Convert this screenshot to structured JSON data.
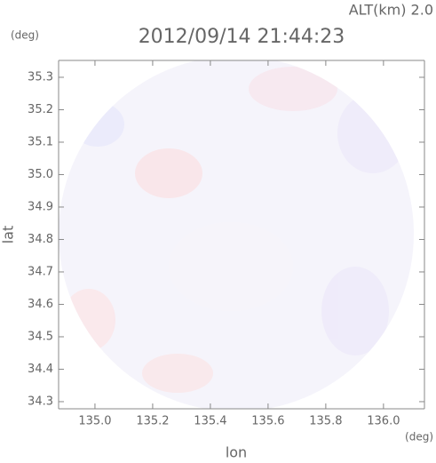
{
  "chart_data": {
    "type": "radar-map",
    "title": "2012/09/14 21:44:23",
    "altitude_label": "ALT(km) 2.0",
    "y_unit": "(deg)",
    "x_unit": "(deg)",
    "xlabel": "lon",
    "ylabel": "lat",
    "xlim": [
      134.874,
      136.142
    ],
    "ylim": [
      34.278,
      35.352
    ],
    "xticks": [
      {
        "value": 135,
        "label": "135.0"
      },
      135.2,
      135.4,
      135.6,
      135.8,
      {
        "value": 136,
        "label": "136.0"
      }
    ],
    "yticks": [
      {
        "value": 34.3,
        "label": "34.3"
      },
      34.4,
      34.5,
      34.6,
      34.7,
      34.8,
      34.9,
      {
        "value": 35,
        "label": "35.0"
      },
      35.1,
      35.2,
      35.3
    ]
  }
}
